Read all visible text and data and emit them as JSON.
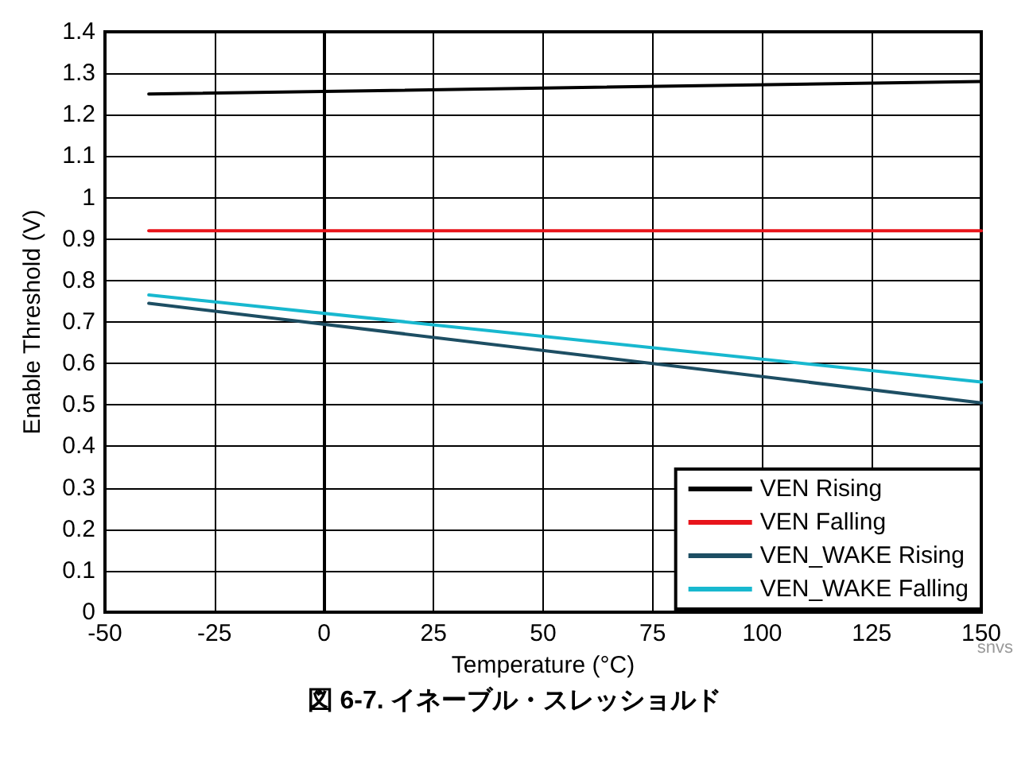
{
  "chart_data": {
    "type": "line",
    "title": "図 6-7. イネーブル・スレッショルド",
    "xlabel": "Temperature (°C)",
    "ylabel": "Enable Threshold (V)",
    "x": [
      -40,
      150
    ],
    "series": [
      {
        "name": "VEN Rising",
        "color": "#000000",
        "values": [
          1.25,
          1.28
        ]
      },
      {
        "name": "VEN Falling",
        "color": "#e8141b",
        "values": [
          0.92,
          0.92
        ]
      },
      {
        "name": "VEN_WAKE Rising",
        "color": "#1d4e63",
        "values": [
          0.745,
          0.505
        ]
      },
      {
        "name": "VEN_WAKE Falling",
        "color": "#18b8cf",
        "values": [
          0.765,
          0.555
        ]
      }
    ],
    "xlim": [
      -50,
      150
    ],
    "xticks": [
      -50,
      -25,
      0,
      25,
      50,
      75,
      100,
      125,
      150
    ],
    "ylim": [
      0,
      1.4
    ],
    "yticks": [
      0,
      0.1,
      0.2,
      0.3,
      0.4,
      0.5,
      0.6,
      0.7,
      0.8,
      0.9,
      1,
      1.1,
      1.2,
      1.3,
      1.4
    ],
    "grid": true,
    "legend": "bottom right",
    "marker": "none",
    "line_style": "solid",
    "annotations": [
      "snvs"
    ]
  }
}
